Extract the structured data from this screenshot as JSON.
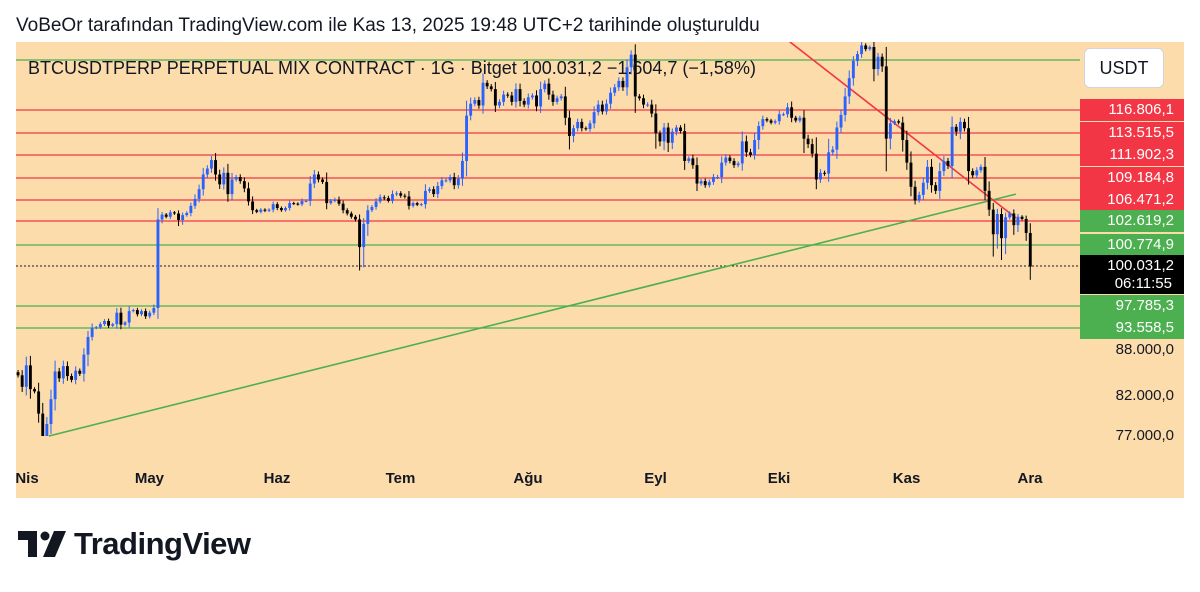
{
  "header": {
    "text": "VoBeOr tarafından TradingView.com ile Kas 13, 2025 19:48 UTC+2 tarihinde oluşturuldu"
  },
  "legend": {
    "text": "BTCUSDTPERP PERPETUAL MIX CONTRACT · 1G · Bitget  100.031,2  −1.604,7 (−1,58%)"
  },
  "currency": "USDT",
  "countdown": "06:11:55",
  "logo": {
    "text": "TradingView"
  },
  "colors": {
    "background": "#fcdcab",
    "up": "#2962ff",
    "down": "#000000",
    "resistance": "#f23645",
    "support": "#4caf50"
  },
  "chart_data": {
    "type": "candlestick",
    "title": "BTCUSDTPERP PERPETUAL MIX CONTRACT · 1G · Bitget",
    "last_price": "100.031,2",
    "change": "−1.604,7",
    "change_percent": "−1,58%",
    "x_labels": [
      "Nis",
      "May",
      "Haz",
      "Tem",
      "Ağu",
      "Eyl",
      "Eki",
      "Kas",
      "Ara"
    ],
    "price_labels": [
      {
        "value": "116.806,1",
        "style": "red"
      },
      {
        "value": "113.515,5",
        "style": "red"
      },
      {
        "value": "111.902,3",
        "style": "red"
      },
      {
        "value": "109.184,8",
        "style": "red"
      },
      {
        "value": "106.471,2",
        "style": "red"
      },
      {
        "value": "102.619,2",
        "style": "green"
      },
      {
        "value": "100.774,9",
        "style": "green"
      },
      {
        "value": "100.031,2",
        "style": "black"
      },
      {
        "value": "97.785,3",
        "style": "green"
      },
      {
        "value": "93.558,5",
        "style": "green"
      },
      {
        "value": "88.000,0",
        "style": "plain"
      },
      {
        "value": "82.000,0",
        "style": "plain"
      },
      {
        "value": "77.000,0",
        "style": "plain"
      }
    ],
    "resistance_levels": [
      116806.1,
      113515.5,
      111902.3,
      109184.8,
      106471.2,
      102619.2
    ],
    "support_levels": [
      122300,
      100774.9,
      97785.3,
      93558.5
    ],
    "trendlines": [
      {
        "name": "rising-support",
        "color": "green",
        "from": [
          "2025-04-09",
          76000
        ],
        "to": [
          "2025-11-30",
          107200
        ]
      },
      {
        "name": "falling-resistance",
        "color": "red",
        "from": [
          "2025-10-06",
          125700
        ],
        "to": [
          "2025-11-30",
          103200
        ]
      }
    ],
    "closes": [
      84700,
      83200,
      86000,
      82900,
      82600,
      79800,
      76400,
      78500,
      81600,
      85200,
      84300,
      85900,
      84600,
      84100,
      85300,
      84900,
      87400,
      91300,
      93500,
      93700,
      94300,
      94900,
      94000,
      94300,
      96500,
      94200,
      94600,
      96800,
      97000,
      96200,
      96800,
      95800,
      96500,
      97400,
      102900,
      103800,
      103400,
      104200,
      104000,
      102800,
      103700,
      104100,
      105400,
      106600,
      107800,
      109600,
      110300,
      111300,
      109600,
      108400,
      109800,
      107200,
      109000,
      109300,
      108800,
      107900,
      106200,
      104600,
      104300,
      104700,
      104500,
      104700,
      105700,
      105000,
      104600,
      105000,
      105900,
      105800,
      105700,
      106300,
      106300,
      108500,
      109600,
      109000,
      108700,
      105900,
      106300,
      106500,
      105800,
      104600,
      104000,
      103400,
      102900,
      100700,
      102400,
      104600,
      105200,
      106200,
      106800,
      106700,
      106300,
      107200,
      107300,
      107000,
      106900,
      105400,
      105900,
      105600,
      105700,
      107600,
      107800,
      107200,
      108200,
      108900,
      108900,
      109300,
      108300,
      109100,
      111200,
      116000,
      117500,
      117900,
      117300,
      119800,
      119400,
      119100,
      117300,
      117700,
      118500,
      118400,
      117700,
      119100,
      117800,
      117400,
      118200,
      118400,
      117200,
      119100,
      119700,
      118500,
      117700,
      118100,
      118300,
      115700,
      113300,
      114200,
      115100,
      114200,
      114100,
      114900,
      116500,
      117400,
      116600,
      117500,
      118700,
      119300,
      120000,
      119300,
      121500,
      123300,
      118300,
      118100,
      117400,
      117400,
      116300,
      113500,
      112900,
      114300,
      112800,
      113700,
      114300,
      113800,
      111200,
      111500,
      110700,
      108500,
      108800,
      108300,
      108700,
      109300,
      109300,
      111000,
      111600,
      111200,
      110700,
      110900,
      112900,
      112100,
      111900,
      113000,
      114500,
      115500,
      115300,
      115000,
      115200,
      116200,
      116200,
      117100,
      115700,
      115300,
      115700,
      113100,
      112700,
      112000,
      109000,
      109800,
      109700,
      112100,
      112300,
      114300,
      116100,
      118300,
      120300,
      122200,
      123400,
      125000,
      124300,
      124700,
      121300,
      122900,
      121600,
      113100,
      114900,
      115200,
      115000,
      113000,
      111000,
      108100,
      106400,
      107100,
      108600,
      110500,
      108300,
      107600,
      110000,
      111200,
      110600,
      114400,
      113700,
      115100,
      114200,
      110000,
      109500,
      110100,
      110500,
      107600,
      104700,
      101600,
      103900,
      101300,
      103300,
      104000,
      102300,
      103400,
      103000,
      101700,
      100000
    ]
  }
}
